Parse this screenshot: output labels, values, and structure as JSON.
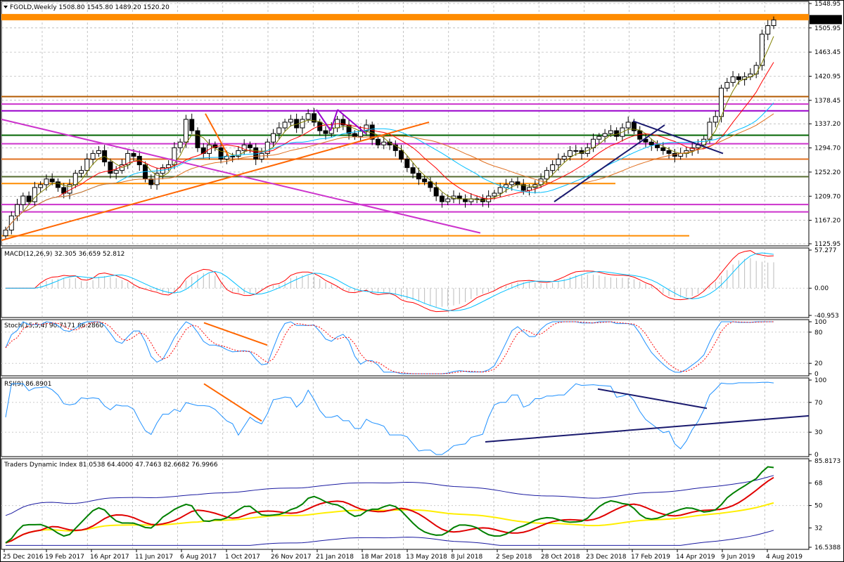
{
  "chart_data": [
    {
      "type": "candlestick",
      "title": "FGOLD,Weekly",
      "ohlc_header": "1508.80 1545.80 1489.20 1520.20",
      "last_price_label": "1520.20",
      "y_ticks": [
        "1548.95",
        "1505.95",
        "1463.45",
        "1420.95",
        "1378.45",
        "1337.20",
        "1294.70",
        "1252.20",
        "1209.70",
        "1167.20",
        "1125.95"
      ],
      "ylim": [
        1125.95,
        1548.95
      ],
      "x_ticks": [
        "25 Dec 2016",
        "19 Feb 2017",
        "16 Apr 2017",
        "11 Jun 2017",
        "6 Aug 2017",
        "1 Oct 2017",
        "26 Nov 2017",
        "21 Jan 2018",
        "18 Mar 2018",
        "13 May 2018",
        "8 Jul 2018",
        "2 Sep 2018",
        "28 Oct 2018",
        "23 Dec 2018",
        "17 Feb 2019",
        "14 Apr 2019",
        "9 Jun 2019",
        "4 Aug 2019"
      ],
      "closes": [
        1150,
        1175,
        1195,
        1210,
        1200,
        1225,
        1230,
        1240,
        1235,
        1225,
        1215,
        1230,
        1250,
        1255,
        1275,
        1285,
        1290,
        1270,
        1250,
        1255,
        1265,
        1285,
        1280,
        1265,
        1240,
        1230,
        1250,
        1260,
        1265,
        1295,
        1305,
        1345,
        1325,
        1295,
        1285,
        1300,
        1295,
        1275,
        1280,
        1280,
        1290,
        1300,
        1295,
        1275,
        1285,
        1305,
        1320,
        1330,
        1340,
        1345,
        1330,
        1345,
        1355,
        1340,
        1325,
        1320,
        1330,
        1345,
        1335,
        1320,
        1315,
        1325,
        1335,
        1310,
        1300,
        1305,
        1300,
        1290,
        1275,
        1260,
        1250,
        1240,
        1235,
        1225,
        1210,
        1200,
        1205,
        1210,
        1205,
        1200,
        1205,
        1205,
        1200,
        1210,
        1215,
        1225,
        1230,
        1235,
        1230,
        1220,
        1225,
        1230,
        1240,
        1255,
        1265,
        1275,
        1280,
        1290,
        1290,
        1285,
        1295,
        1310,
        1315,
        1320,
        1325,
        1315,
        1330,
        1340,
        1325,
        1310,
        1305,
        1300,
        1295,
        1290,
        1285,
        1280,
        1285,
        1290,
        1295,
        1300,
        1310,
        1340,
        1350,
        1400,
        1410,
        1420,
        1415,
        1420,
        1425,
        1440,
        1495,
        1510,
        1520
      ],
      "series": [
        {
          "name": "",
          "color": "#ff0000"
        },
        {
          "name": "",
          "color": "#00bfff"
        },
        {
          "name": "",
          "color": "#e07020"
        },
        {
          "name": "",
          "color": "#808000"
        }
      ],
      "horizontal_levels": [
        {
          "value": 1525,
          "color": "#ff8c00"
        },
        {
          "value": 1385,
          "color": "#b35a00"
        },
        {
          "value": 1372,
          "color": "#cc33cc"
        },
        {
          "value": 1360,
          "color": "#9900cc"
        },
        {
          "value": 1317,
          "color": "#006400"
        },
        {
          "value": 1302,
          "color": "#cc33cc"
        },
        {
          "value": 1275,
          "color": "#e07020"
        },
        {
          "value": 1244,
          "color": "#556b2f"
        },
        {
          "value": 1232,
          "color": "#ff8c00"
        },
        {
          "value": 1195,
          "color": "#cc33cc"
        },
        {
          "value": 1182,
          "color": "#cc33cc"
        },
        {
          "value": 1140,
          "color": "#ff8c00"
        }
      ]
    },
    {
      "type": "line",
      "title": "MACD(12,26,9) 32.305 36.659 52.812",
      "y_ticks": [
        "57.277",
        "0.00",
        "-40.953"
      ],
      "ylim": [
        -40.953,
        57.277
      ]
    },
    {
      "type": "line",
      "title": "Stoch(15,5,4) 90.7171 86.2860",
      "y_ticks": [
        "100",
        "80",
        "20",
        "0"
      ],
      "ylim": [
        0,
        100
      ]
    },
    {
      "type": "line",
      "title": "RSI(9) 86.8901",
      "y_ticks": [
        "100",
        "70",
        "30",
        "0"
      ],
      "ylim": [
        0,
        100
      ]
    },
    {
      "type": "line",
      "title": "Traders Dynamic Index 81.0538 64.4000 47.7463 82.6682 76.9966",
      "y_ticks": [
        "85.8173",
        "68",
        "50",
        "32",
        "16.5388"
      ],
      "ylim": [
        16.5388,
        85.8173
      ]
    }
  ]
}
